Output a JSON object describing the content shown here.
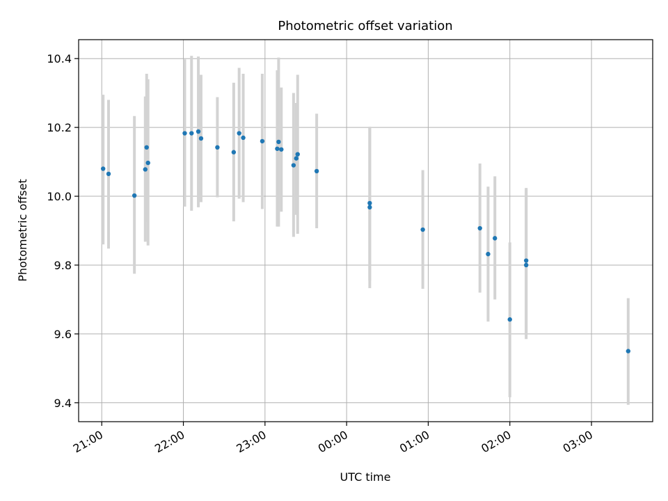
{
  "chart_data": {
    "type": "scatter",
    "title": "Photometric offset variation",
    "xlabel": "UTC time",
    "ylabel": "Photometric offset",
    "grid": true,
    "x_unit": "UTC hours (dates spanning midnight)",
    "xlim": [
      "20:43",
      "03:45"
    ],
    "ylim": [
      9.345,
      10.455
    ],
    "x_ticks": [
      "21:00",
      "22:00",
      "23:00",
      "00:00",
      "01:00",
      "02:00",
      "03:00"
    ],
    "y_ticks": [
      "9.4",
      "9.6",
      "9.8",
      "10.0",
      "10.2",
      "10.4"
    ],
    "y_tick_values": [
      9.4,
      9.6,
      9.8,
      10.0,
      10.2,
      10.4
    ],
    "colors": {
      "points": "#1f77b4",
      "errorbars": "#d3d3d3",
      "grid": "#b0b0b0"
    },
    "points": [
      {
        "x": "21:01",
        "y": 10.08,
        "lo": 9.86,
        "hi": 10.295
      },
      {
        "x": "21:05",
        "y": 10.065,
        "lo": 9.848,
        "hi": 10.28
      },
      {
        "x": "21:24",
        "y": 10.002,
        "lo": 9.775,
        "hi": 10.233
      },
      {
        "x": "21:32",
        "y": 10.078,
        "lo": 9.868,
        "hi": 10.29
      },
      {
        "x": "21:33",
        "y": 10.142,
        "lo": 9.925,
        "hi": 10.356
      },
      {
        "x": "21:34",
        "y": 10.097,
        "lo": 9.857,
        "hi": 10.34
      },
      {
        "x": "22:01",
        "y": 10.183,
        "lo": 9.97,
        "hi": 10.398
      },
      {
        "x": "22:06",
        "y": 10.183,
        "lo": 9.958,
        "hi": 10.408
      },
      {
        "x": "22:11",
        "y": 10.188,
        "lo": 9.968,
        "hi": 10.406
      },
      {
        "x": "22:13",
        "y": 10.168,
        "lo": 9.983,
        "hi": 10.353
      },
      {
        "x": "22:25",
        "y": 10.142,
        "lo": 9.997,
        "hi": 10.288
      },
      {
        "x": "22:37",
        "y": 10.128,
        "lo": 9.927,
        "hi": 10.33
      },
      {
        "x": "22:41",
        "y": 10.183,
        "lo": 9.993,
        "hi": 10.373
      },
      {
        "x": "22:44",
        "y": 10.17,
        "lo": 9.983,
        "hi": 10.356
      },
      {
        "x": "22:58",
        "y": 10.16,
        "lo": 9.963,
        "hi": 10.356
      },
      {
        "x": "23:09",
        "y": 10.138,
        "lo": 9.912,
        "hi": 10.366
      },
      {
        "x": "23:10",
        "y": 10.158,
        "lo": 9.912,
        "hi": 10.403
      },
      {
        "x": "23:12",
        "y": 10.136,
        "lo": 9.955,
        "hi": 10.316
      },
      {
        "x": "23:21",
        "y": 10.09,
        "lo": 9.882,
        "hi": 10.3
      },
      {
        "x": "23:23",
        "y": 10.11,
        "lo": 9.946,
        "hi": 10.271
      },
      {
        "x": "23:24",
        "y": 10.122,
        "lo": 9.891,
        "hi": 10.353
      },
      {
        "x": "23:38",
        "y": 10.073,
        "lo": 9.907,
        "hi": 10.24
      },
      {
        "x": "00:17",
        "y": 9.98,
        "lo": 9.755,
        "hi": 10.202
      },
      {
        "x": "00:17",
        "y": 9.968,
        "lo": 9.733,
        "hi": 10.2
      },
      {
        "x": "00:56",
        "y": 9.903,
        "lo": 9.731,
        "hi": 10.076
      },
      {
        "x": "01:38",
        "y": 9.907,
        "lo": 9.72,
        "hi": 10.095
      },
      {
        "x": "01:44",
        "y": 9.832,
        "lo": 9.636,
        "hi": 10.028
      },
      {
        "x": "01:49",
        "y": 9.878,
        "lo": 9.7,
        "hi": 10.058
      },
      {
        "x": "02:00",
        "y": 9.642,
        "lo": 9.416,
        "hi": 9.866
      },
      {
        "x": "02:12",
        "y": 9.813,
        "lo": 9.6,
        "hi": 10.024
      },
      {
        "x": "02:12",
        "y": 9.8,
        "lo": 9.585,
        "hi": 10.02
      },
      {
        "x": "03:27",
        "y": 9.55,
        "lo": 9.394,
        "hi": 9.704
      }
    ]
  }
}
